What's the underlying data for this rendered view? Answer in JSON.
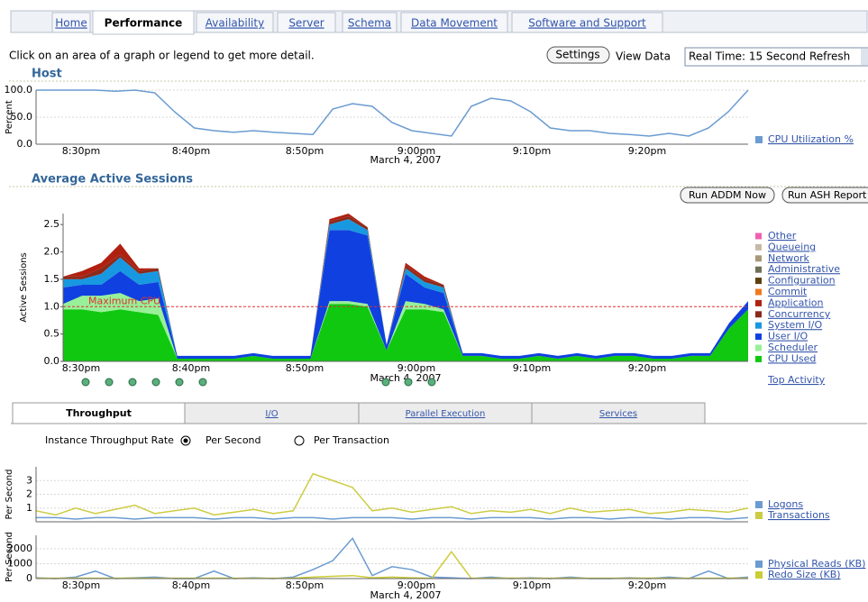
{
  "tabs": [
    "Home",
    "Performance",
    "Availability",
    "Server",
    "Schema",
    "Data Movement",
    "Software and Support"
  ],
  "instruction": "Click on an area of a graph or legend to get more detail.",
  "settings_button": "Settings",
  "view_data_label": "View Data",
  "view_data_value": "Real Time: 15 Second Refresh",
  "buttons": [
    "Run ADDM Now",
    "Run ASH Report"
  ],
  "top_activity": "Top Activity",
  "subtabs": [
    "Throughput",
    "I/O",
    "Parallel Execution",
    "Services"
  ],
  "rate": {
    "label": "Instance Throughput Rate",
    "options": [
      "Per Second",
      "Per Transaction"
    ]
  },
  "chart_data": [
    {
      "type": "line",
      "title": "Host",
      "ylabel": "Percent",
      "xtick_labels": [
        "8:30pm",
        "8:40pm",
        "8:50pm",
        "9:00pm",
        "9:10pm",
        "9:20pm"
      ],
      "x_sublabel": "March 4, 2007",
      "ylim": [
        0,
        100
      ],
      "yticks": [
        {
          "value": 0,
          "label": "0.0"
        },
        {
          "value": 50,
          "label": "50.0"
        },
        {
          "value": 100,
          "label": "100.0"
        }
      ],
      "grid": true,
      "series": [
        {
          "name": "CPU Utilization %",
          "color": "#6b9bd1",
          "values": [
            100,
            100,
            100,
            100,
            98,
            100,
            95,
            60,
            30,
            25,
            22,
            25,
            22,
            20,
            18,
            65,
            75,
            70,
            40,
            25,
            20,
            15,
            70,
            85,
            80,
            60,
            30,
            25,
            25,
            20,
            18,
            15,
            20,
            15,
            30,
            60,
            100
          ]
        }
      ]
    },
    {
      "type": "stacked_area",
      "title": "Average Active Sessions",
      "ylabel": "Active Sessions",
      "xtick_labels": [
        "8:30pm",
        "8:40pm",
        "8:50pm",
        "9:00pm",
        "9:10pm",
        "9:20pm"
      ],
      "x_sublabel": "March 4, 2007",
      "ylim": [
        0,
        2.7
      ],
      "yticks": [
        {
          "value": 0,
          "label": "0.0"
        },
        {
          "value": 0.5,
          "label": "0.5"
        },
        {
          "value": 1,
          "label": "1.0"
        },
        {
          "value": 1.5,
          "label": "1.5"
        },
        {
          "value": 2,
          "label": "2.0"
        },
        {
          "value": 2.5,
          "label": "2.5"
        }
      ],
      "grid": false,
      "reference_line": {
        "label": "Maximum CPU",
        "value": 1,
        "color": "#e03030"
      },
      "series": [
        {
          "name": "Other",
          "color": "#f060b0",
          "values": [
            0,
            0,
            0,
            0,
            0,
            0,
            0,
            0,
            0,
            0,
            0,
            0,
            0,
            0,
            0,
            0,
            0,
            0,
            0,
            0,
            0,
            0,
            0,
            0,
            0,
            0,
            0,
            0,
            0,
            0,
            0,
            0,
            0,
            0,
            0,
            0,
            0
          ]
        },
        {
          "name": "Queueing",
          "color": "#c8b8a8",
          "values": [
            0,
            0,
            0,
            0,
            0,
            0,
            0,
            0,
            0,
            0,
            0,
            0,
            0,
            0,
            0,
            0,
            0,
            0,
            0,
            0,
            0,
            0,
            0,
            0,
            0,
            0,
            0,
            0,
            0,
            0,
            0,
            0,
            0,
            0,
            0,
            0,
            0
          ]
        },
        {
          "name": "Network",
          "color": "#a89878",
          "values": [
            0,
            0,
            0,
            0,
            0,
            0,
            0,
            0,
            0,
            0,
            0,
            0,
            0,
            0,
            0,
            0,
            0,
            0,
            0,
            0,
            0,
            0,
            0,
            0,
            0,
            0,
            0,
            0,
            0,
            0,
            0,
            0,
            0,
            0,
            0,
            0,
            0
          ]
        },
        {
          "name": "Administrative",
          "color": "#707058",
          "values": [
            0,
            0,
            0,
            0,
            0,
            0,
            0,
            0,
            0,
            0,
            0,
            0,
            0,
            0,
            0,
            0,
            0,
            0,
            0,
            0,
            0,
            0,
            0,
            0,
            0,
            0,
            0,
            0,
            0,
            0,
            0,
            0,
            0,
            0,
            0,
            0,
            0
          ]
        },
        {
          "name": "Configuration",
          "color": "#5c4010",
          "values": [
            0,
            0,
            0,
            0,
            0,
            0,
            0,
            0,
            0,
            0,
            0,
            0,
            0,
            0,
            0,
            0,
            0,
            0,
            0,
            0,
            0,
            0,
            0,
            0,
            0,
            0,
            0,
            0,
            0,
            0,
            0,
            0,
            0,
            0,
            0,
            0,
            0
          ]
        },
        {
          "name": "Commit",
          "color": "#f07820",
          "values": [
            0,
            0,
            0,
            0,
            0,
            0,
            0,
            0,
            0,
            0,
            0,
            0,
            0,
            0,
            0,
            0,
            0,
            0,
            0,
            0,
            0,
            0,
            0,
            0,
            0,
            0,
            0,
            0,
            0,
            0,
            0,
            0,
            0,
            0,
            0,
            0,
            0
          ]
        },
        {
          "name": "Application",
          "color": "#b02010",
          "values": [
            0,
            0.1,
            0.1,
            0.2,
            0.05,
            0,
            0,
            0,
            0,
            0,
            0,
            0,
            0,
            0,
            0.05,
            0.05,
            0,
            0,
            0.05,
            0.05,
            0,
            0,
            0,
            0,
            0,
            0,
            0,
            0,
            0,
            0,
            0,
            0,
            0,
            0,
            0,
            0,
            0
          ]
        },
        {
          "name": "Concurrency",
          "color": "#8b2a1a",
          "values": [
            0.05,
            0.05,
            0.1,
            0.05,
            0.05,
            0.05,
            0,
            0,
            0,
            0,
            0,
            0,
            0,
            0,
            0.05,
            0.05,
            0.05,
            0,
            0.05,
            0.05,
            0.05,
            0,
            0,
            0,
            0,
            0,
            0,
            0,
            0,
            0,
            0,
            0,
            0,
            0,
            0,
            0,
            0
          ]
        },
        {
          "name": "System I/O",
          "color": "#1898e0",
          "values": [
            0.15,
            0.1,
            0.2,
            0.25,
            0.2,
            0.2,
            0,
            0,
            0,
            0,
            0,
            0,
            0,
            0,
            0.1,
            0.2,
            0.1,
            0,
            0.1,
            0.1,
            0.1,
            0,
            0,
            0,
            0,
            0,
            0,
            0,
            0,
            0,
            0,
            0,
            0,
            0,
            0,
            0,
            0
          ]
        },
        {
          "name": "User I/O",
          "color": "#1040e0",
          "values": [
            0.3,
            0.2,
            0.2,
            0.4,
            0.3,
            0.3,
            0.05,
            0.05,
            0.05,
            0.05,
            0.05,
            0.05,
            0.05,
            0.05,
            1.3,
            1.3,
            1.25,
            0.1,
            0.5,
            0.3,
            0.3,
            0.05,
            0.05,
            0.05,
            0.05,
            0.05,
            0.05,
            0.05,
            0.05,
            0.05,
            0.05,
            0.05,
            0.05,
            0.05,
            0.05,
            0.1,
            0.15
          ]
        },
        {
          "name": "Scheduler",
          "color": "#98f098",
          "values": [
            0.1,
            0.25,
            0.3,
            0.3,
            0.2,
            0.3,
            0,
            0,
            0,
            0,
            0,
            0,
            0,
            0,
            0.05,
            0.05,
            0.05,
            0,
            0.15,
            0.1,
            0.05,
            0,
            0,
            0,
            0,
            0,
            0,
            0,
            0,
            0,
            0,
            0,
            0,
            0,
            0,
            0,
            0
          ]
        },
        {
          "name": "CPU Used",
          "color": "#10c810",
          "values": [
            0.95,
            0.95,
            0.9,
            0.95,
            0.9,
            0.85,
            0.05,
            0.05,
            0.05,
            0.05,
            0.1,
            0.05,
            0.05,
            0.05,
            1.05,
            1.05,
            1.0,
            0.2,
            0.95,
            0.95,
            0.9,
            0.1,
            0.1,
            0.05,
            0.05,
            0.1,
            0.05,
            0.1,
            0.05,
            0.1,
            0.1,
            0.05,
            0.05,
            0.1,
            0.1,
            0.6,
            0.95
          ]
        }
      ]
    },
    {
      "type": "line",
      "ylabel": "Per Second",
      "ylim": [
        0,
        4
      ],
      "yticks": [
        1,
        2,
        3
      ],
      "grid": true,
      "series": [
        {
          "name": "Logons",
          "color": "#6b9bd1",
          "values": [
            0.3,
            0.3,
            0.2,
            0.3,
            0.3,
            0.2,
            0.3,
            0.3,
            0.3,
            0.2,
            0.3,
            0.3,
            0.2,
            0.3,
            0.3,
            0.2,
            0.3,
            0.3,
            0.3,
            0.2,
            0.3,
            0.3,
            0.2,
            0.3,
            0.3,
            0.3,
            0.2,
            0.3,
            0.3,
            0.2,
            0.3,
            0.3,
            0.2,
            0.3,
            0.3,
            0.2,
            0.3
          ]
        },
        {
          "name": "Transactions",
          "color": "#cccc44",
          "values": [
            0.8,
            0.5,
            1.0,
            0.6,
            0.9,
            1.2,
            0.6,
            0.8,
            1.0,
            0.5,
            0.7,
            0.9,
            0.6,
            0.8,
            3.5,
            3.0,
            2.5,
            0.8,
            1.0,
            0.7,
            0.9,
            1.1,
            0.6,
            0.8,
            0.7,
            0.9,
            0.6,
            1.0,
            0.7,
            0.8,
            0.9,
            0.6,
            0.7,
            0.9,
            0.8,
            0.7,
            1.0
          ]
        }
      ]
    },
    {
      "type": "line",
      "ylabel": "Per Second",
      "xtick_labels": [
        "8:30pm",
        "8:40pm",
        "8:50pm",
        "9:00pm",
        "9:10pm",
        "9:20pm"
      ],
      "x_sublabel": "March 4, 2007",
      "ylim": [
        0,
        2900
      ],
      "yticks": [
        0,
        1000,
        2000
      ],
      "grid": true,
      "series": [
        {
          "name": "Physical Reads (KB)",
          "color": "#6b9bd1",
          "values": [
            50,
            0,
            100,
            500,
            0,
            50,
            100,
            0,
            0,
            500,
            0,
            50,
            0,
            100,
            600,
            1200,
            2700,
            200,
            800,
            600,
            100,
            50,
            0,
            100,
            0,
            50,
            0,
            100,
            0,
            0,
            50,
            0,
            100,
            0,
            500,
            0,
            100
          ]
        },
        {
          "name": "Redo Size (KB)",
          "color": "#cccc33",
          "values": [
            20,
            20,
            30,
            20,
            20,
            30,
            20,
            20,
            20,
            30,
            20,
            20,
            20,
            30,
            100,
            150,
            200,
            50,
            100,
            50,
            20,
            1800,
            20,
            20,
            30,
            20,
            20,
            30,
            20,
            20,
            20,
            30,
            20,
            20,
            20,
            30,
            20
          ]
        }
      ]
    }
  ]
}
